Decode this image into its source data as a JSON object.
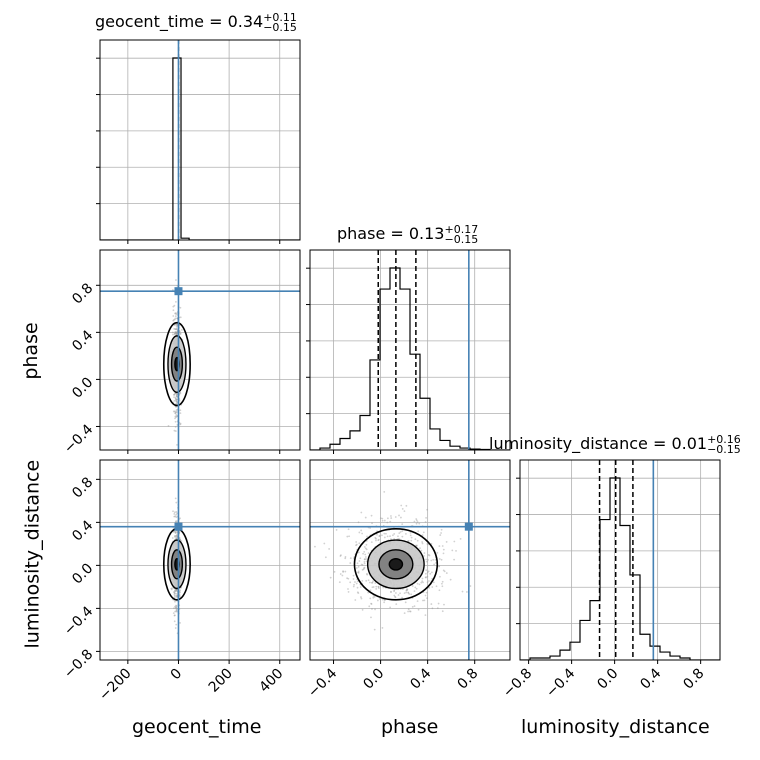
{
  "titles": {
    "geocent_time": {
      "name": "geocent_time",
      "median": "0.34",
      "plus": "+0.11",
      "minus": "−0.15"
    },
    "phase": {
      "name": "phase",
      "median": "0.13",
      "plus": "+0.17",
      "minus": "−0.15"
    },
    "luminosity_distance": {
      "name": "luminosity_distance",
      "median": "0.01",
      "plus": "+0.16",
      "minus": "−0.15"
    }
  },
  "xlabels": {
    "geocent_time": "geocent_time",
    "phase": "phase",
    "luminosity_distance": "luminosity_distance"
  },
  "ylabels": {
    "phase": "phase",
    "luminosity_distance": "luminosity_distance"
  },
  "colors": {
    "truth": "#4682b4",
    "hist": "#000000",
    "grid": "#b0b0b0",
    "scatter": "#9a9a9a"
  },
  "chart_data": {
    "type": "corner",
    "parameters": [
      "geocent_time",
      "phase",
      "luminosity_distance"
    ],
    "truths": {
      "geocent_time": 0,
      "phase": 0.75,
      "luminosity_distance": 0.36
    },
    "ranges": {
      "geocent_time": [
        -310,
        480
      ],
      "phase": [
        -0.6,
        1.1
      ],
      "luminosity_distance": [
        -0.88,
        0.98
      ]
    },
    "ticks": {
      "geocent_time": [
        -200,
        0,
        200,
        400
      ],
      "phase": [
        -0.4,
        0.0,
        0.4,
        0.8
      ],
      "luminosity_distance": [
        -0.8,
        -0.4,
        0.0,
        0.4,
        0.8
      ]
    },
    "tick_labels": {
      "geocent_time": [
        "−200",
        "0",
        "200",
        "400"
      ],
      "phase": [
        "−0.4",
        "0.0",
        "0.4",
        "0.8"
      ],
      "luminosity_distance": [
        "−0.8",
        "−0.4",
        "0.0",
        "0.4",
        "0.8"
      ]
    },
    "quantiles": {
      "phase": [
        -0.02,
        0.13,
        0.3
      ],
      "luminosity_distance": [
        -0.14,
        0.01,
        0.17
      ]
    },
    "histograms": {
      "geocent_time": {
        "edges": [
          -310,
          -278,
          -246,
          -214,
          -182,
          -150,
          -118,
          -86,
          -54,
          -22,
          10,
          42,
          74,
          106,
          138,
          170,
          202,
          234,
          266,
          298,
          330,
          362,
          394,
          426,
          458,
          480
        ],
        "counts": [
          0,
          0,
          0,
          0,
          0,
          0,
          0,
          0,
          0,
          1.0,
          0.01,
          0,
          0,
          0,
          0,
          0,
          0,
          0,
          0,
          0,
          0,
          0,
          0,
          0,
          0
        ]
      },
      "phase": {
        "edges": [
          -0.6,
          -0.515,
          -0.43,
          -0.345,
          -0.26,
          -0.175,
          -0.09,
          -0.005,
          0.08,
          0.165,
          0.25,
          0.335,
          0.42,
          0.505,
          0.59,
          0.675,
          0.76,
          0.845,
          0.93,
          1.015,
          1.1
        ],
        "counts": [
          0,
          0.01,
          0.03,
          0.06,
          0.1,
          0.18,
          0.47,
          0.84,
          0.95,
          0.84,
          0.5,
          0.27,
          0.11,
          0.05,
          0.02,
          0.01,
          0.005,
          0.003,
          0,
          0
        ]
      },
      "luminosity_distance": {
        "edges": [
          -0.88,
          -0.787,
          -0.694,
          -0.601,
          -0.508,
          -0.415,
          -0.322,
          -0.229,
          -0.136,
          -0.043,
          0.05,
          0.143,
          0.236,
          0.329,
          0.422,
          0.515,
          0.608,
          0.701,
          0.794,
          0.887,
          0.98
        ],
        "counts": [
          0,
          0.01,
          0.01,
          0.02,
          0.05,
          0.09,
          0.2,
          0.3,
          0.71,
          0.92,
          0.68,
          0.43,
          0.13,
          0.07,
          0.04,
          0.02,
          0.01,
          0,
          0,
          0
        ]
      }
    }
  }
}
